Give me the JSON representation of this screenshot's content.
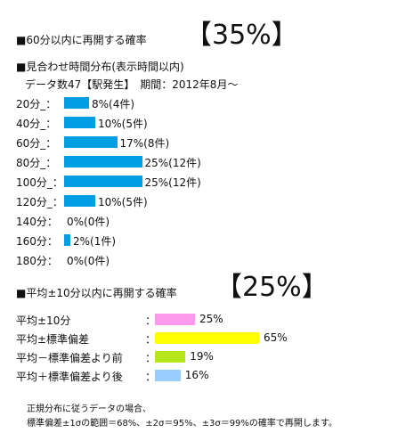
{
  "section1": {
    "heading": "■60分以内に再開する確率",
    "big_value": "【35%】"
  },
  "section2": {
    "heading": "■見合わせ時間分布(表示時間以内)",
    "subheading": "データ数47【駅発生】　期間：2012年8月～"
  },
  "chart_data": [
    {
      "type": "bar",
      "orientation": "horizontal",
      "categories": [
        "20分_：",
        "40分_：",
        "60分_：",
        "80分_：",
        "100分_：",
        "120分_：",
        "140分：",
        "160分：",
        "180分："
      ],
      "values": [
        8,
        10,
        17,
        25,
        25,
        10,
        0,
        2,
        0
      ],
      "value_labels": [
        "8%(4件)",
        "10%(5件)",
        "17%(8件)",
        "25%(12件)",
        "25%(12件)",
        "10%(5件)",
        "0%(0件)",
        "2%(1件)",
        "0%(0件)"
      ],
      "colors": {
        "bar": "#009FE3"
      }
    },
    {
      "type": "bar",
      "orientation": "horizontal",
      "categories": [
        "平均±10分",
        "平均±標準偏差",
        "平均－標準偏差より前",
        "平均＋標準偏差より後"
      ],
      "values": [
        25,
        65,
        19,
        16
      ],
      "value_labels": [
        "25%",
        "65%",
        "19%",
        "16%"
      ],
      "colors": {
        "bars": [
          "#FF99EE",
          "#FFFF00",
          "#B5E61D",
          "#99CCFF"
        ]
      }
    }
  ],
  "section3": {
    "heading": "■平均±10分以内に再開する確率",
    "big_value": "【25%】",
    "colon": "："
  },
  "footnote": {
    "line1": "正規分布に従うデータの場合、",
    "line2": "標準偏差±1σの範囲＝68%、±2σ＝95%、±3σ＝99%の確率で再開します。"
  }
}
